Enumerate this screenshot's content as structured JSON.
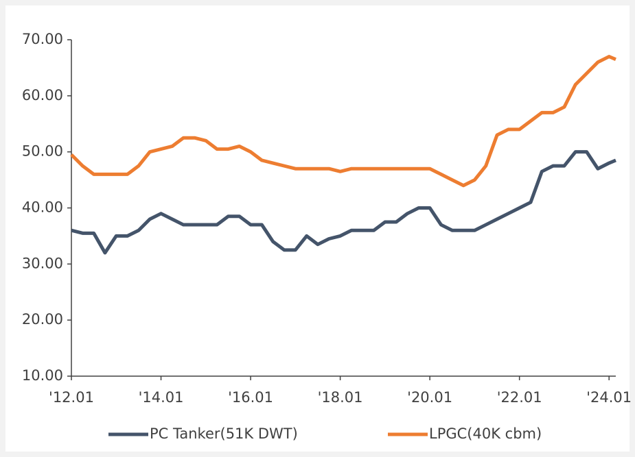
{
  "chart_data": {
    "type": "line",
    "x": [
      2012,
      2012.25,
      2012.5,
      2012.75,
      2013,
      2013.25,
      2013.5,
      2013.75,
      2014,
      2014.25,
      2014.5,
      2014.75,
      2015,
      2015.25,
      2015.5,
      2015.75,
      2016,
      2016.25,
      2016.5,
      2016.75,
      2017,
      2017.25,
      2017.5,
      2017.75,
      2018,
      2018.25,
      2018.5,
      2018.75,
      2019,
      2019.25,
      2019.5,
      2019.75,
      2020,
      2020.25,
      2020.5,
      2020.75,
      2021,
      2021.25,
      2021.5,
      2021.75,
      2022,
      2022.25,
      2022.5,
      2022.75,
      2023,
      2023.25,
      2023.5,
      2023.75,
      2024,
      2024.15
    ],
    "series": [
      {
        "name": "PC Tanker(51K DWT)",
        "color": "#44546a",
        "values": [
          36,
          35.5,
          35.5,
          32,
          35,
          35,
          36,
          38,
          39,
          38,
          37,
          37,
          37,
          37,
          38.5,
          38.5,
          37,
          37,
          34,
          32.5,
          32.5,
          35,
          33.5,
          34.5,
          35,
          36,
          36,
          36,
          37.5,
          37.5,
          39,
          40,
          40,
          37,
          36,
          36,
          36,
          37,
          38,
          39,
          40,
          41,
          46.5,
          47.5,
          47.5,
          50,
          50,
          47,
          48,
          48.5
        ]
      },
      {
        "name": "LPGC(40K cbm)",
        "color": "#ed7d31",
        "values": [
          49.5,
          47.5,
          46,
          46,
          46,
          46,
          47.5,
          50,
          50.5,
          51,
          52.5,
          52.5,
          52,
          50.5,
          50.5,
          51,
          50,
          48.5,
          48,
          47.5,
          47,
          47,
          47,
          47,
          46.5,
          47,
          47,
          47,
          47,
          47,
          47,
          47,
          47,
          46,
          45,
          44,
          45,
          47.5,
          53,
          54,
          54,
          55.5,
          57,
          57,
          58,
          62,
          64,
          66,
          67,
          66.5
        ]
      }
    ],
    "xlim": [
      2012,
      2024.15
    ],
    "xticks": [
      {
        "value": 2012,
        "label": "'12.01"
      },
      {
        "value": 2014,
        "label": "'14.01"
      },
      {
        "value": 2016,
        "label": "'16.01"
      },
      {
        "value": 2018,
        "label": "'18.01"
      },
      {
        "value": 2020,
        "label": "'20.01"
      },
      {
        "value": 2022,
        "label": "'22.01"
      },
      {
        "value": 2024,
        "label": "'24.01"
      }
    ],
    "ylim": [
      10,
      70
    ],
    "yticks": [
      {
        "value": 10,
        "label": "10.00"
      },
      {
        "value": 20,
        "label": "20.00"
      },
      {
        "value": 30,
        "label": "30.00"
      },
      {
        "value": 40,
        "label": "40.00"
      },
      {
        "value": 50,
        "label": "50.00"
      },
      {
        "value": 60,
        "label": "60.00"
      },
      {
        "value": 70,
        "label": "70.00"
      }
    ],
    "legend": "bottom"
  }
}
